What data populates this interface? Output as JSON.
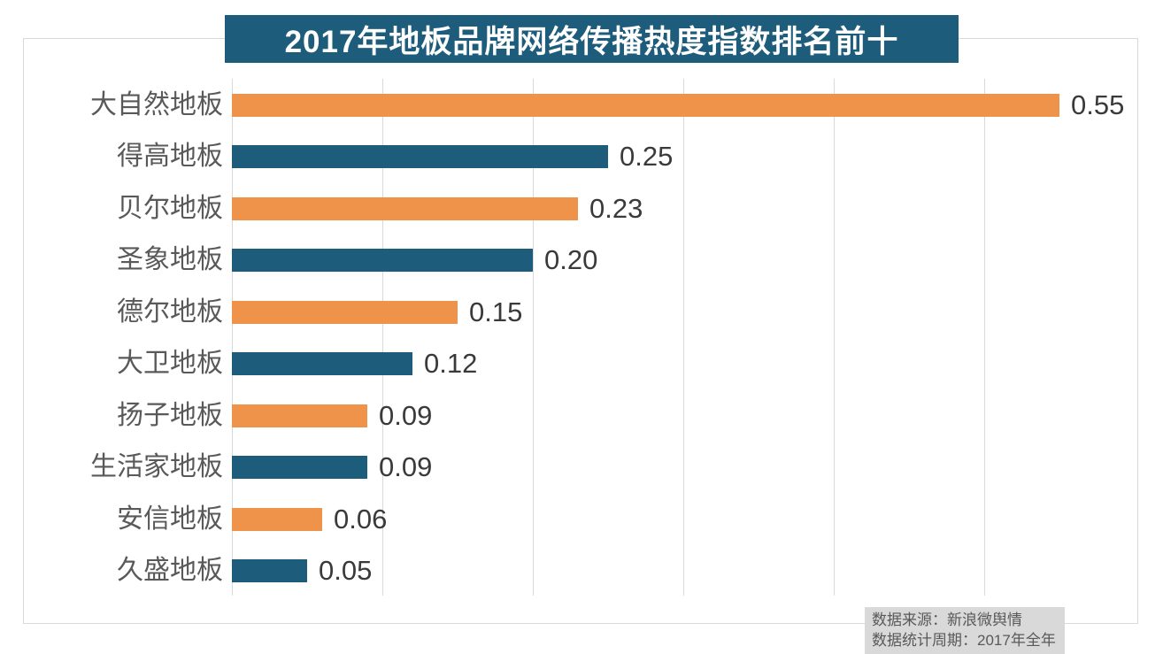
{
  "chart_data": {
    "type": "bar",
    "orientation": "horizontal",
    "title": "2017年地板品牌网络传播热度指数排名前十",
    "categories": [
      "大自然地板",
      "得高地板",
      "贝尔地板",
      "圣象地板",
      "德尔地板",
      "大卫地板",
      "扬子地板",
      "生活家地板",
      "安信地板",
      "久盛地板"
    ],
    "values": [
      0.55,
      0.25,
      0.23,
      0.2,
      0.15,
      0.12,
      0.09,
      0.09,
      0.06,
      0.05
    ],
    "value_labels": [
      "0.55",
      "0.25",
      "0.23",
      "0.20",
      "0.15",
      "0.12",
      "0.09",
      "0.09",
      "0.06",
      "0.05"
    ],
    "xlabel": "",
    "ylabel": "",
    "xlim": [
      0,
      0.6
    ],
    "gridline_step": 0.1,
    "grid": "vertical-only",
    "legend": "none",
    "bar_color_odd_rows": "#ef924a",
    "bar_color_even_rows": "#1e5c7b"
  },
  "colors": {
    "banner_bg": "#1e5c7b",
    "banner_text": "#ffffff",
    "gridline": "#d9d9d9",
    "frame_border": "#d9d9d9",
    "category_label": "#595959",
    "value_label": "#3a3a3a",
    "source_bg": "#d9d9d9",
    "source_text": "#595959",
    "background": "#ffffff"
  },
  "source_note": {
    "line1": "数据来源：新浪微舆情",
    "line2": "数据统计周期：2017年全年"
  }
}
